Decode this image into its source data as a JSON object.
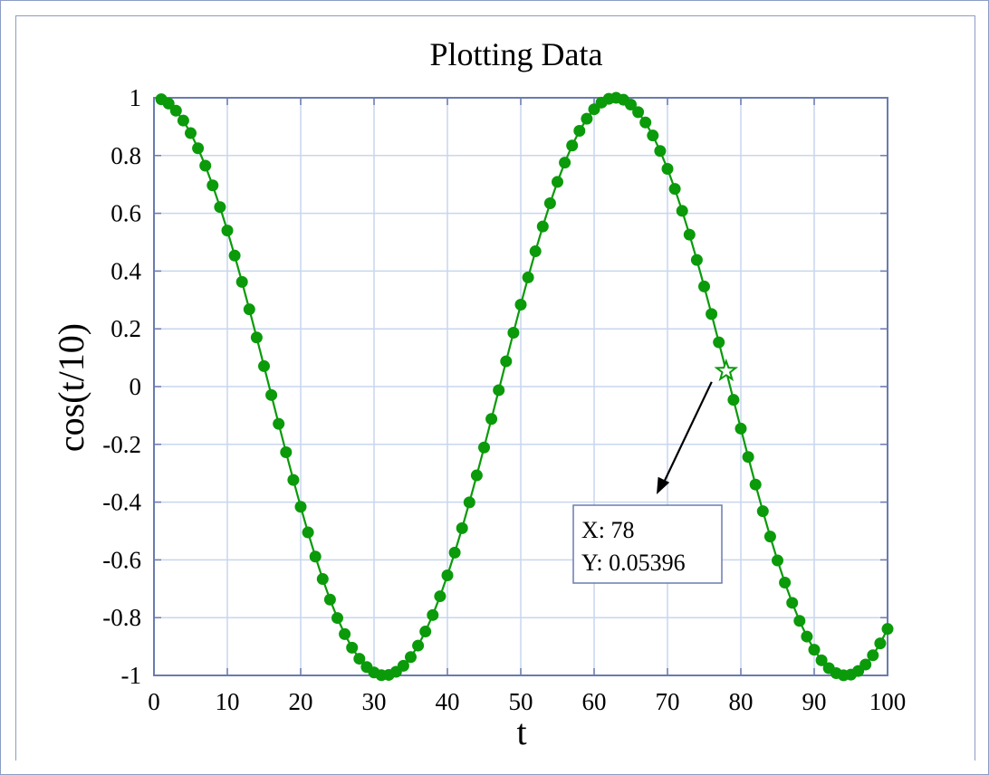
{
  "chart_data": {
    "type": "line",
    "title": "Plotting Data",
    "xlabel": "t",
    "ylabel": "cos(t/10)",
    "xlim": [
      0,
      100
    ],
    "ylim": [
      -1,
      1
    ],
    "xticks": [
      "0",
      "10",
      "20",
      "30",
      "40",
      "50",
      "60",
      "70",
      "80",
      "90",
      "100"
    ],
    "yticks": [
      "1",
      "0.8",
      "0.6",
      "0.4",
      "0.2",
      "0",
      "-0.2",
      "-0.4",
      "-0.6",
      "-0.8",
      "-1"
    ],
    "grid": true,
    "series": [
      {
        "function": "cos(t/10)",
        "x_start": 1,
        "x_end": 100,
        "x_step": 1,
        "color": "#0a9a0a",
        "marker": "filled-circle"
      }
    ],
    "datatip": {
      "x": 78,
      "y": 0.05396,
      "x_label": "X: 78",
      "y_label": "Y: 0.05396"
    }
  },
  "colors": {
    "axes": "#6b7bb0",
    "grid": "#c8d6ee",
    "line": "#0a9a0a"
  }
}
